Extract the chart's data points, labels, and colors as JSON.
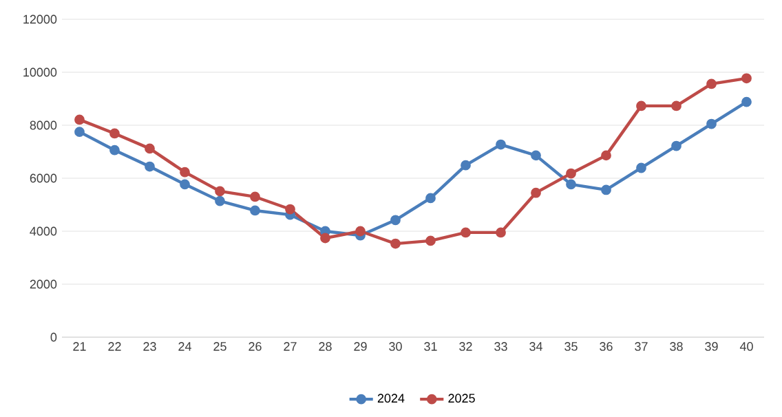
{
  "chart_data": {
    "type": "line",
    "categories": [
      "21",
      "22",
      "23",
      "24",
      "25",
      "26",
      "27",
      "28",
      "29",
      "30",
      "31",
      "32",
      "33",
      "34",
      "35",
      "36",
      "37",
      "38",
      "39",
      "40"
    ],
    "series": [
      {
        "name": "2024",
        "color": "#4a7ebb",
        "values": [
          7750,
          7060,
          6440,
          5770,
          5140,
          4780,
          4620,
          4000,
          3840,
          4420,
          5250,
          6490,
          7270,
          6860,
          5770,
          5560,
          6390,
          7220,
          8050,
          8880
        ]
      },
      {
        "name": "2025",
        "color": "#be4b48",
        "values": [
          8210,
          7690,
          7120,
          6230,
          5510,
          5300,
          4830,
          3740,
          4000,
          3530,
          3640,
          3950,
          3950,
          5450,
          6180,
          6860,
          8730,
          8730,
          9560,
          9770
        ]
      }
    ],
    "ylim": [
      0,
      12000
    ],
    "yticks": [
      0,
      2000,
      4000,
      6000,
      8000,
      10000,
      12000
    ],
    "grid": "y",
    "legend": "bottom",
    "marker": "circle",
    "line_style": "solid"
  }
}
